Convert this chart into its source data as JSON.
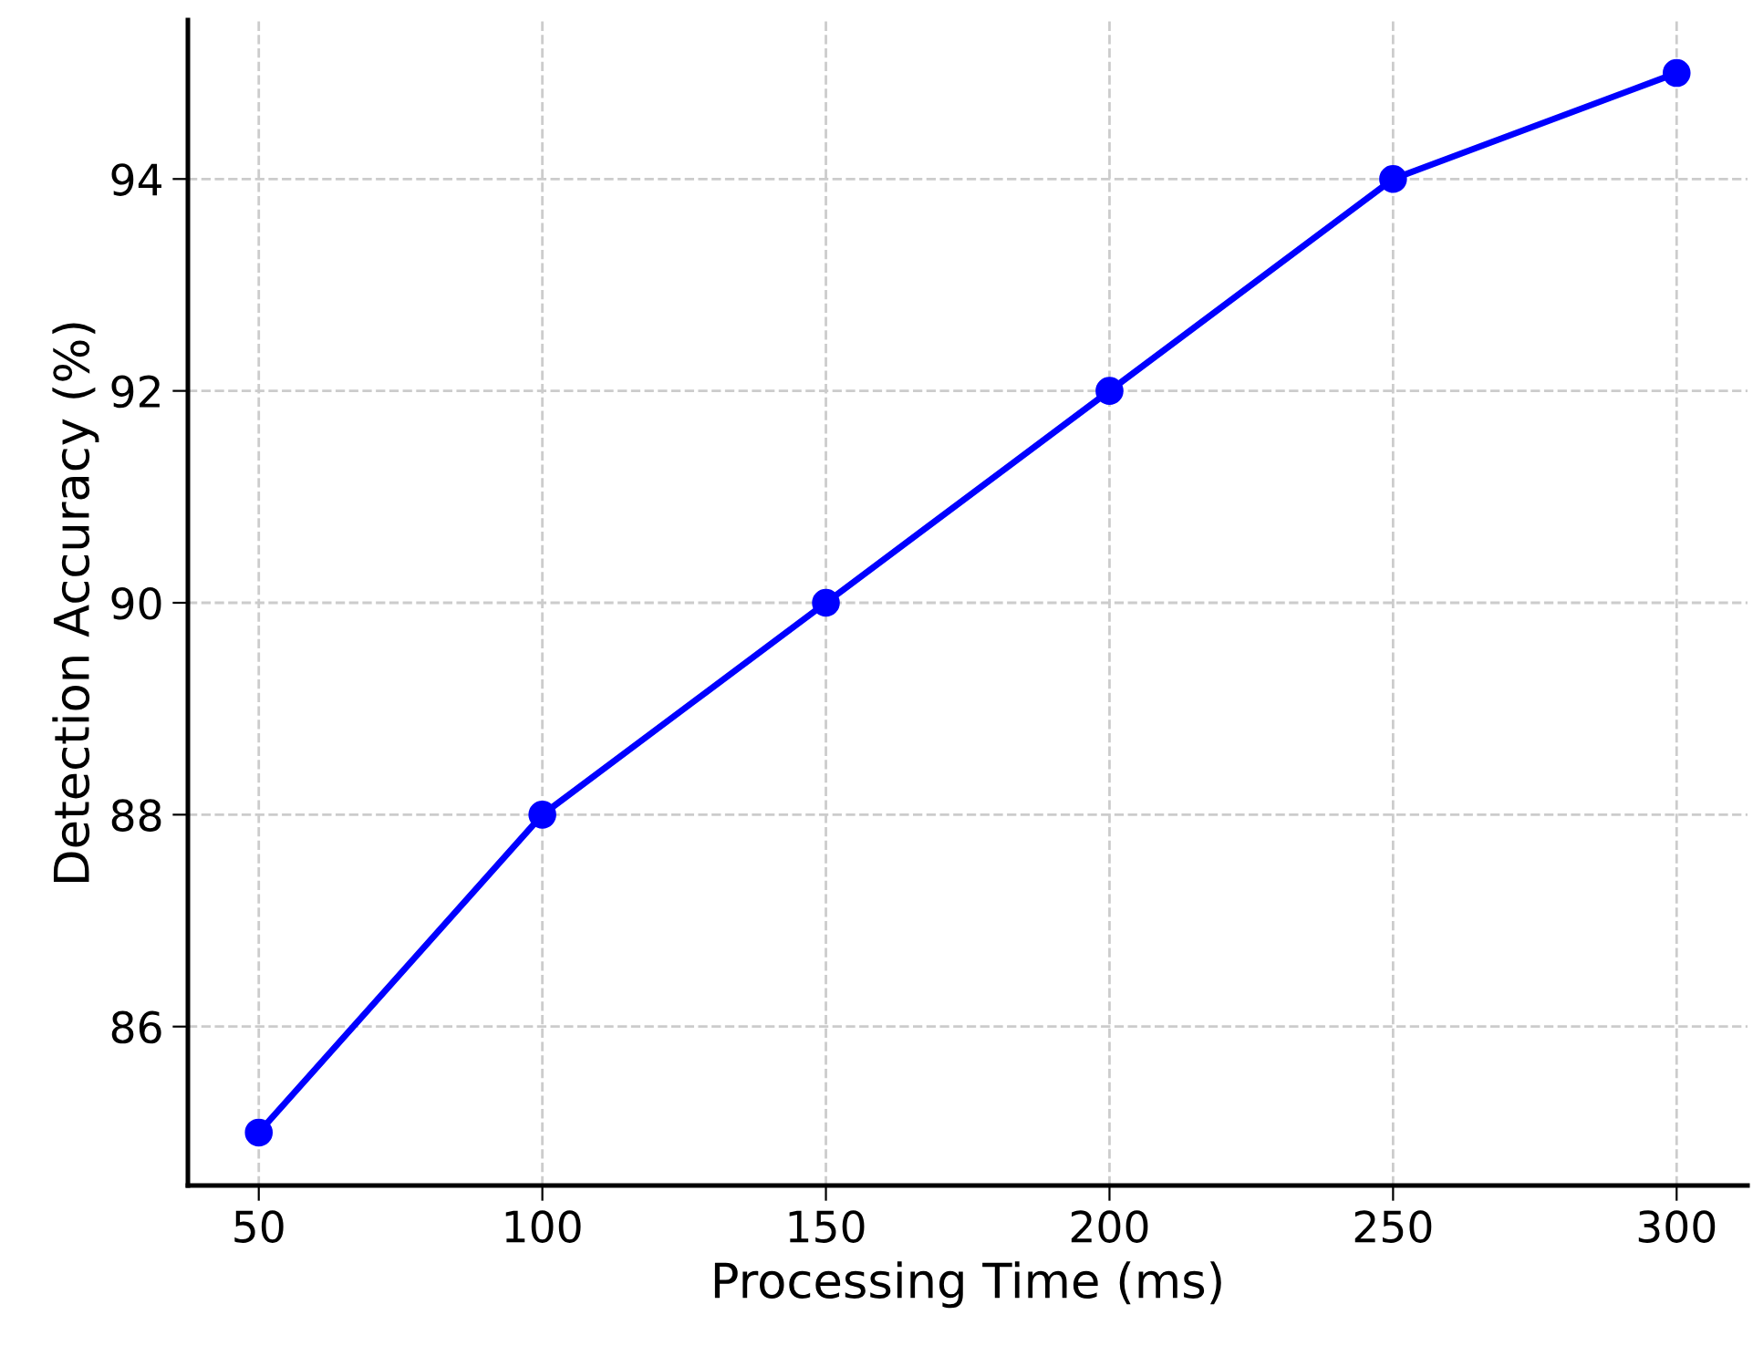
{
  "chart_data": {
    "type": "line",
    "xlabel": "Processing Time (ms)",
    "ylabel": "Detection Accuracy (%)",
    "x": [
      50,
      100,
      150,
      200,
      250,
      300
    ],
    "series": [
      {
        "color": "#0000ff",
        "values": [
          85,
          88,
          90,
          92,
          94,
          95
        ]
      }
    ],
    "xlim": [
      37.5,
      312.5
    ],
    "xticks": [
      50,
      100,
      150,
      200,
      250,
      300
    ],
    "ylim": [
      84.5,
      95.5
    ],
    "yticks": [
      86,
      88,
      90,
      92,
      94
    ],
    "grid": true,
    "marker": "circle",
    "line_style": "solid"
  }
}
